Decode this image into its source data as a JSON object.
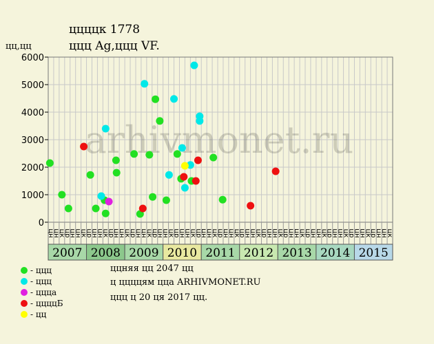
{
  "header": {
    "title": "ццццк 1778",
    "subtitle": "ццц Ag,ццц VF.",
    "ylabel": "цц,цц"
  },
  "watermark": "arhivmonet.ru",
  "chart_data": {
    "type": "scatter",
    "ylim": [
      0,
      6000
    ],
    "yticks": [
      0,
      1000,
      2000,
      3000,
      4000,
      5000,
      6000
    ],
    "grid": true,
    "years": [
      {
        "label": "2007",
        "color": "#a8d8a8"
      },
      {
        "label": "2008",
        "color": "#8cc88c"
      },
      {
        "label": "2009",
        "color": "#a8d8a8"
      },
      {
        "label": "2010",
        "color": "#e8e8a0"
      },
      {
        "label": "2011",
        "color": "#a8d8a8"
      },
      {
        "label": "2012",
        "color": "#c8e8b0"
      },
      {
        "label": "2013",
        "color": "#a8d8a8"
      },
      {
        "label": "2014",
        "color": "#a8d8c0"
      },
      {
        "label": "2015",
        "color": "#b8d8e8"
      }
    ],
    "month_labels": [
      "цн",
      "цн",
      "цк",
      "цр",
      "цн",
      "цн",
      "цк",
      "цр",
      "цн",
      "цн",
      "цк",
      "цр",
      "цн",
      "цн",
      "цк",
      "цр",
      "цн",
      "цн",
      "цк",
      "цр",
      "цн",
      "цн",
      "цк",
      "цр",
      "цн",
      "цн",
      "цк",
      "цр",
      "цн",
      "цн",
      "цк",
      "цр",
      "цн",
      "цн",
      "цк",
      "цр",
      "цн",
      "цн",
      "цк",
      "цр",
      "цн",
      "цн",
      "цк",
      "цр",
      "цн",
      "цн",
      "цк",
      "цр",
      "цн",
      "цн",
      "цк",
      "цр",
      "цн",
      "цн",
      "цк",
      "цр",
      "цн",
      "цн",
      "цк",
      "цр",
      "цн",
      "цн",
      "цк"
    ],
    "series": [
      {
        "name": "- ццц",
        "color": "#22e022",
        "points": [
          {
            "x": 0.3,
            "y": 2150
          },
          {
            "x": 2.5,
            "y": 1000
          },
          {
            "x": 3.7,
            "y": 500
          },
          {
            "x": 7.7,
            "y": 1720
          },
          {
            "x": 8.7,
            "y": 500
          },
          {
            "x": 10.3,
            "y": 800
          },
          {
            "x": 10.5,
            "y": 320
          },
          {
            "x": 12.4,
            "y": 2250
          },
          {
            "x": 12.5,
            "y": 1800
          },
          {
            "x": 15.7,
            "y": 2480
          },
          {
            "x": 16.8,
            "y": 300
          },
          {
            "x": 18.5,
            "y": 2450
          },
          {
            "x": 19.1,
            "y": 920
          },
          {
            "x": 19.6,
            "y": 4470
          },
          {
            "x": 20.4,
            "y": 3680
          },
          {
            "x": 21.6,
            "y": 800
          },
          {
            "x": 23.6,
            "y": 2480
          },
          {
            "x": 24.3,
            "y": 1580
          },
          {
            "x": 26.2,
            "y": 1500
          },
          {
            "x": 30.2,
            "y": 2350
          },
          {
            "x": 31.9,
            "y": 820
          }
        ]
      },
      {
        "name": "- ццц",
        "color": "#00e8e8",
        "points": [
          {
            "x": 9.7,
            "y": 950
          },
          {
            "x": 10.5,
            "y": 3400
          },
          {
            "x": 17.6,
            "y": 5030
          },
          {
            "x": 22.1,
            "y": 1720
          },
          {
            "x": 23.0,
            "y": 4480
          },
          {
            "x": 24.5,
            "y": 2700
          },
          {
            "x": 25.0,
            "y": 1250
          },
          {
            "x": 26.0,
            "y": 2080
          },
          {
            "x": 26.7,
            "y": 5700
          },
          {
            "x": 27.7,
            "y": 3850
          },
          {
            "x": 27.7,
            "y": 3680
          }
        ]
      },
      {
        "name": "- ццца",
        "color": "#e020e0",
        "points": [
          {
            "x": 11.1,
            "y": 750
          }
        ]
      },
      {
        "name": "- ццццБ",
        "color": "#ee1010",
        "points": [
          {
            "x": 6.5,
            "y": 2750
          },
          {
            "x": 17.3,
            "y": 500
          },
          {
            "x": 24.8,
            "y": 1650
          },
          {
            "x": 27.0,
            "y": 1500
          },
          {
            "x": 27.4,
            "y": 2250
          },
          {
            "x": 37.0,
            "y": 600
          },
          {
            "x": 41.6,
            "y": 1850
          }
        ]
      },
      {
        "name": "- цц",
        "color": "#ffff00",
        "points": [
          {
            "x": 25.0,
            "y": 2050
          }
        ]
      }
    ]
  },
  "notes": [
    "ццняя цц 2047 цц",
    "ц ццццям цца ARHIVMONET.RU",
    "ццц ц 20 ця 2017 цц."
  ]
}
